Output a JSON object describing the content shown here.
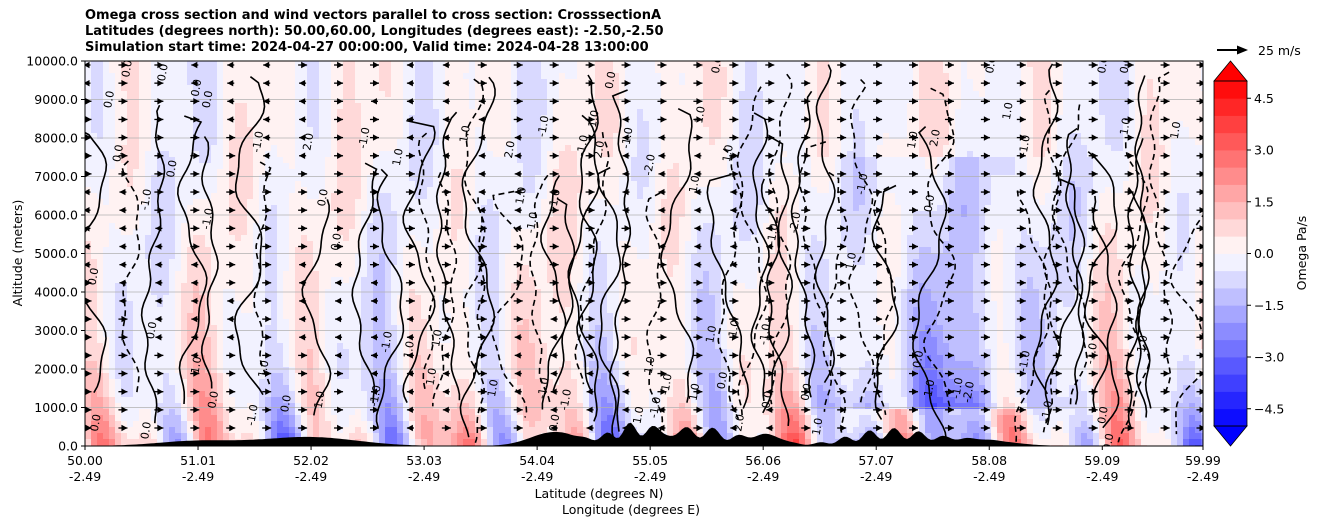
{
  "chart_data": {
    "type": "heatmap",
    "title_lines": [
      "Omega cross section and wind vectors parallel to cross section: CrosssectionA",
      "Latitudes (degrees north): 50.00,60.00, Longitudes (degrees east): -2.50,-2.50",
      "Simulation start time: 2024-04-27 00:00:00, Valid time: 2024-04-28 13:00:00"
    ],
    "ylabel": "Altitude (meters)",
    "xlabel_lines": [
      "Latitude (degrees N)",
      "Longitude (degrees E)"
    ],
    "y_ticks": [
      "0.0",
      "1000.0",
      "2000.0",
      "3000.0",
      "4000.0",
      "5000.0",
      "6000.0",
      "7000.0",
      "8000.0",
      "9000.0",
      "10000.0"
    ],
    "ylim": [
      0,
      10000
    ],
    "x_ticks": [
      {
        "lat": "50.00",
        "lon": "-2.49"
      },
      {
        "lat": "51.01",
        "lon": "-2.49"
      },
      {
        "lat": "52.02",
        "lon": "-2.49"
      },
      {
        "lat": "53.03",
        "lon": "-2.49"
      },
      {
        "lat": "54.04",
        "lon": "-2.49"
      },
      {
        "lat": "55.05",
        "lon": "-2.49"
      },
      {
        "lat": "56.06",
        "lon": "-2.49"
      },
      {
        "lat": "57.07",
        "lon": "-2.49"
      },
      {
        "lat": "58.08",
        "lon": "-2.49"
      },
      {
        "lat": "59.09",
        "lon": "-2.49"
      },
      {
        "lat": "59.99",
        "lon": "-2.49"
      }
    ],
    "xlim": [
      50.0,
      59.99
    ],
    "colorbar": {
      "label": "Omega Pa/s",
      "ticks": [
        "4.5",
        "3.0",
        "1.5",
        "0.0",
        "−1.5",
        "−3.0",
        "−4.5"
      ],
      "range": [
        -5,
        5
      ],
      "levels": 20,
      "extend": "both"
    },
    "quiver_key": "25 m/s",
    "contour_labels": [
      {
        "text": "0.0",
        "lat": 50.38,
        "alt": 9800
      },
      {
        "text": "0.0",
        "lat": 50.7,
        "alt": 9700
      },
      {
        "text": "0.0",
        "lat": 51.0,
        "alt": 9300
      },
      {
        "text": "0.0",
        "lat": 50.22,
        "alt": 9000
      },
      {
        "text": "0.0",
        "lat": 50.3,
        "alt": 7600
      },
      {
        "text": "-1.0",
        "lat": 50.55,
        "alt": 6400
      },
      {
        "text": "-1.0",
        "lat": 51.1,
        "alt": 5900
      },
      {
        "text": "0.0",
        "lat": 50.78,
        "alt": 7200
      },
      {
        "text": "0.0",
        "lat": 51.1,
        "alt": 9000
      },
      {
        "text": "0.0",
        "lat": 52.13,
        "alt": 6450
      },
      {
        "text": "0.0",
        "lat": 52.25,
        "alt": 5300
      },
      {
        "text": "0.0",
        "lat": 50.08,
        "alt": 4400
      },
      {
        "text": "0.0",
        "lat": 50.6,
        "alt": 3000
      },
      {
        "text": "1.0",
        "lat": 51.0,
        "alt": 2100
      },
      {
        "text": "1.0",
        "lat": 51.6,
        "alt": 2000
      },
      {
        "text": "0.0",
        "lat": 51.15,
        "alt": 1200
      },
      {
        "text": "0.0",
        "lat": 50.55,
        "alt": 400
      },
      {
        "text": "0.0",
        "lat": 50.1,
        "alt": 600
      },
      {
        "text": "-1.0",
        "lat": 51.5,
        "alt": 800
      },
      {
        "text": "0.0",
        "lat": 51.8,
        "alt": 1100
      },
      {
        "text": "1.0",
        "lat": 52.1,
        "alt": 1200
      },
      {
        "text": "-1.0",
        "lat": 52.6,
        "alt": 1300
      },
      {
        "text": "1.0",
        "lat": 52.9,
        "alt": 2500
      },
      {
        "text": "-1.0",
        "lat": 52.7,
        "alt": 2700
      },
      {
        "text": "1.0",
        "lat": 53.15,
        "alt": 2800
      },
      {
        "text": "-1.0",
        "lat": 52.5,
        "alt": 8000
      },
      {
        "text": "2.0",
        "lat": 52.0,
        "alt": 7900
      },
      {
        "text": "-1.0",
        "lat": 51.55,
        "alt": 7900
      },
      {
        "text": "1.0",
        "lat": 52.8,
        "alt": 7500
      },
      {
        "text": "1.0",
        "lat": 53.4,
        "alt": 8100
      },
      {
        "text": "2.0",
        "lat": 53.8,
        "alt": 7700
      },
      {
        "text": "-1.0",
        "lat": 54.1,
        "alt": 8300
      },
      {
        "text": "-1.0",
        "lat": 54.45,
        "alt": 7800
      },
      {
        "text": "1.0",
        "lat": 54.55,
        "alt": 8500
      },
      {
        "text": "2.0",
        "lat": 54.6,
        "alt": 7700
      },
      {
        "text": "-1.0",
        "lat": 54.85,
        "alt": 8000
      },
      {
        "text": "-2.0",
        "lat": 55.05,
        "alt": 7300
      },
      {
        "text": "1.0",
        "lat": 55.5,
        "alt": 8600
      },
      {
        "text": "1.0",
        "lat": 55.75,
        "alt": 7600
      },
      {
        "text": "1.0",
        "lat": 55.45,
        "alt": 6800
      },
      {
        "text": "-1.0",
        "lat": 54.0,
        "alt": 5800
      },
      {
        "text": "-1.0",
        "lat": 54.2,
        "alt": 6400
      },
      {
        "text": "1.0",
        "lat": 53.9,
        "alt": 6500
      },
      {
        "text": "-2.0",
        "lat": 56.35,
        "alt": 5800
      },
      {
        "text": "-1.0",
        "lat": 56.15,
        "alt": 5500
      },
      {
        "text": "-1.0",
        "lat": 56.95,
        "alt": 6800
      },
      {
        "text": "1.0",
        "lat": 56.85,
        "alt": 4800
      },
      {
        "text": "-1.0",
        "lat": 55.8,
        "alt": 3000
      },
      {
        "text": "1.0",
        "lat": 55.6,
        "alt": 2900
      },
      {
        "text": "-1.0",
        "lat": 56.08,
        "alt": 2900
      },
      {
        "text": "1.0",
        "lat": 57.4,
        "alt": 7950
      },
      {
        "text": "2.0",
        "lat": 57.6,
        "alt": 8000
      },
      {
        "text": "0.0",
        "lat": 57.55,
        "alt": 6300
      },
      {
        "text": "1.0",
        "lat": 58.25,
        "alt": 8700
      },
      {
        "text": "-1.0",
        "lat": 58.4,
        "alt": 7800
      },
      {
        "text": "1.0",
        "lat": 59.3,
        "alt": 8300
      },
      {
        "text": "1.0",
        "lat": 59.75,
        "alt": 8200
      },
      {
        "text": "0.0",
        "lat": 59.1,
        "alt": 9900
      },
      {
        "text": "0.0",
        "lat": 59.3,
        "alt": 9900
      },
      {
        "text": "0.0",
        "lat": 58.1,
        "alt": 9900
      },
      {
        "text": "0.0",
        "lat": 55.65,
        "alt": 9900
      },
      {
        "text": "0.0",
        "lat": 54.7,
        "alt": 9500
      },
      {
        "text": "-1.0",
        "lat": 58.4,
        "alt": 2200
      },
      {
        "text": "-1.0",
        "lat": 59.0,
        "alt": 2400
      },
      {
        "text": "-1.0",
        "lat": 59.45,
        "alt": 2600
      },
      {
        "text": "0.0",
        "lat": 57.45,
        "alt": 2250
      },
      {
        "text": "-1.0",
        "lat": 57.8,
        "alt": 1500
      },
      {
        "text": "-2.0",
        "lat": 57.9,
        "alt": 1400
      },
      {
        "text": "-1.0",
        "lat": 58.6,
        "alt": 900
      },
      {
        "text": "0.0",
        "lat": 59.1,
        "alt": 800
      },
      {
        "text": "0.0",
        "lat": 59.15,
        "alt": 100
      },
      {
        "text": "0.0",
        "lat": 56.45,
        "alt": 1400
      },
      {
        "text": "1.0",
        "lat": 56.55,
        "alt": 500
      },
      {
        "text": "0.0",
        "lat": 56.1,
        "alt": 1200
      },
      {
        "text": "1.0",
        "lat": 57.55,
        "alt": 1500
      },
      {
        "text": "2.0",
        "lat": 55.85,
        "alt": 600
      },
      {
        "text": "1.0",
        "lat": 55.45,
        "alt": 1400
      },
      {
        "text": "0.0",
        "lat": 55.7,
        "alt": 1700
      },
      {
        "text": "-1.0",
        "lat": 55.2,
        "alt": 1600
      },
      {
        "text": "1.0",
        "lat": 55.05,
        "alt": 2100
      },
      {
        "text": "-1.0",
        "lat": 54.1,
        "alt": 1500
      },
      {
        "text": "1.0",
        "lat": 53.65,
        "alt": 1500
      },
      {
        "text": "1.0",
        "lat": 53.1,
        "alt": 1800
      },
      {
        "text": "-1.0",
        "lat": 54.3,
        "alt": 1200
      },
      {
        "text": "0.0",
        "lat": 54.2,
        "alt": 600
      },
      {
        "text": "-1.0",
        "lat": 55.1,
        "alt": 1000
      },
      {
        "text": "1.0",
        "lat": 54.95,
        "alt": 800
      }
    ]
  }
}
